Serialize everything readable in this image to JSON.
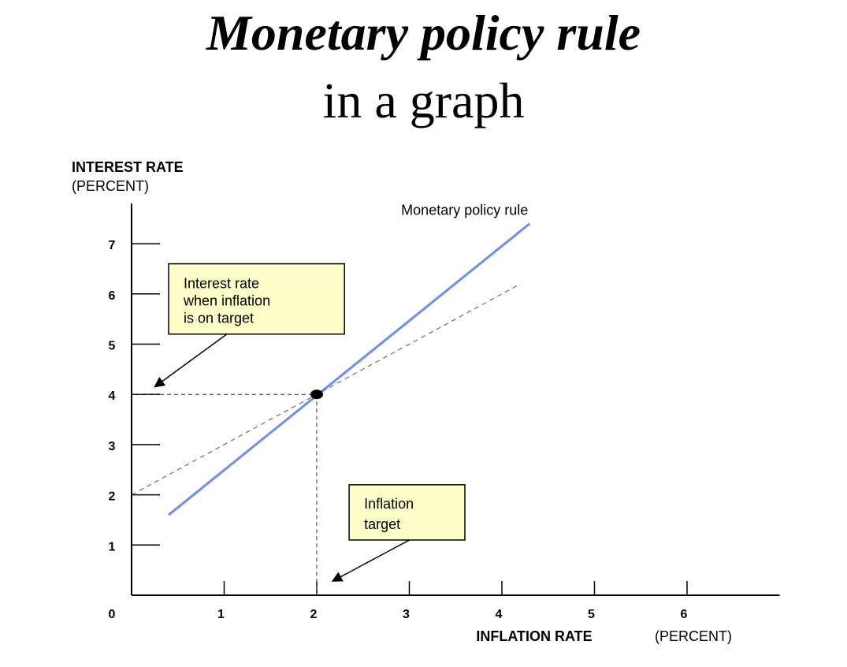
{
  "heading": {
    "line1": "Monetary policy rule",
    "line2": "in a graph"
  },
  "chart_data": {
    "type": "line",
    "ylabel": "INTEREST RATE",
    "ylabel_unit": "(PERCENT)",
    "xlabel": "INFLATION RATE",
    "xlabel_unit": "(PERCENT)",
    "origin_label": "0",
    "xlim": [
      0,
      7
    ],
    "ylim": [
      0,
      7.8
    ],
    "x_ticks": [
      1,
      2,
      3,
      4,
      5,
      6
    ],
    "y_ticks": [
      1,
      2,
      3,
      4,
      5,
      6,
      7
    ],
    "grid": false,
    "series": [
      {
        "name": "Monetary policy rule",
        "color": "#6d8ef0",
        "style": "solid",
        "points": [
          [
            0.4,
            1.6
          ],
          [
            4.3,
            7.4
          ]
        ]
      },
      {
        "color": "#555555",
        "style": "dashed",
        "points": [
          [
            0,
            2
          ],
          [
            4.2,
            6.2
          ]
        ]
      }
    ],
    "guides": [
      {
        "from": [
          0,
          4
        ],
        "to": [
          2,
          4
        ],
        "style": "dashed"
      },
      {
        "from": [
          2,
          4
        ],
        "to": [
          2,
          0
        ],
        "style": "dashed"
      }
    ],
    "highlight_point": {
      "x": 2,
      "y": 4
    },
    "annotations": [
      {
        "text_lines": [
          "Interest rate",
          "when inflation",
          "is on target"
        ],
        "box": {
          "x0": 0.4,
          "x1": 2.3,
          "y0": 6.6,
          "y1": 5.2
        },
        "arrow_from": [
          1.03,
          5.2
        ],
        "arrow_to": [
          0.25,
          4.15
        ]
      },
      {
        "text_lines": [
          "Inflation",
          "target"
        ],
        "box": {
          "x0": 2.35,
          "x1": 3.6,
          "y0": 2.2,
          "y1": 1.1
        },
        "arrow_from": [
          3.0,
          1.1
        ],
        "arrow_to": [
          2.17,
          0.28
        ]
      }
    ]
  }
}
